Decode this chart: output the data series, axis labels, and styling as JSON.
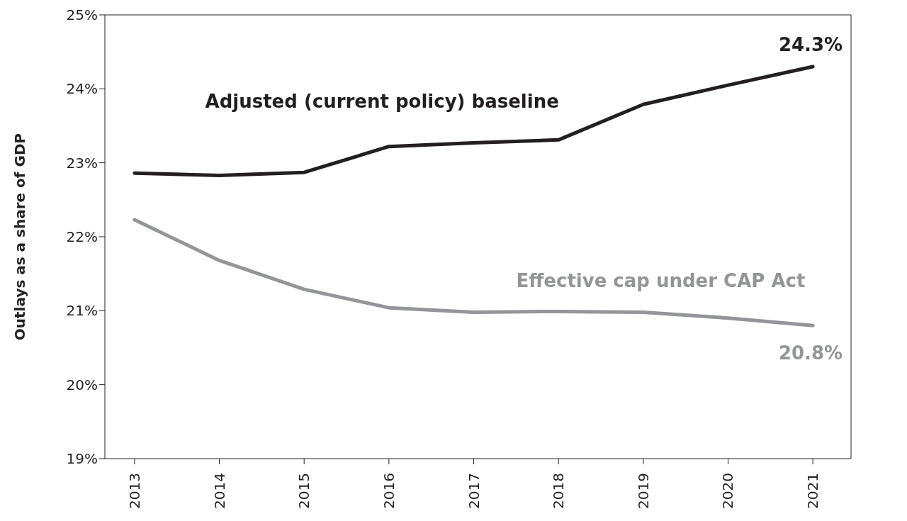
{
  "chart_data": {
    "type": "line",
    "ylabel": "Outlays as a share of GDP",
    "categories": [
      "2013",
      "2014",
      "2015",
      "2016",
      "2017",
      "2018",
      "2019",
      "2020",
      "2021"
    ],
    "series": [
      {
        "name": "Adjusted (current policy) baseline",
        "color": "#231f20",
        "values": [
          22.86,
          22.83,
          22.87,
          23.22,
          23.27,
          23.31,
          23.79,
          24.05,
          24.3
        ]
      },
      {
        "name": "Effective cap under CAP Act",
        "color": "#939598",
        "values": [
          22.23,
          21.68,
          21.29,
          21.04,
          20.98,
          20.99,
          20.98,
          20.9,
          20.8
        ]
      }
    ],
    "ylim": [
      19,
      25
    ],
    "yticks": [
      {
        "value": 19,
        "label": "19%"
      },
      {
        "value": 20,
        "label": "20%"
      },
      {
        "value": 21,
        "label": "21%"
      },
      {
        "value": 22,
        "label": "22%"
      },
      {
        "value": 23,
        "label": "23%"
      },
      {
        "value": 24,
        "label": "24%"
      },
      {
        "value": 25,
        "label": "25%"
      }
    ],
    "annotations": [
      {
        "text": "24.3%",
        "x": "2021",
        "y": 24.3
      },
      {
        "text": "20.8%",
        "x": "2021",
        "y": 20.8
      }
    ],
    "grid": false,
    "legend": false,
    "marker": "none",
    "line_style": "solid"
  }
}
